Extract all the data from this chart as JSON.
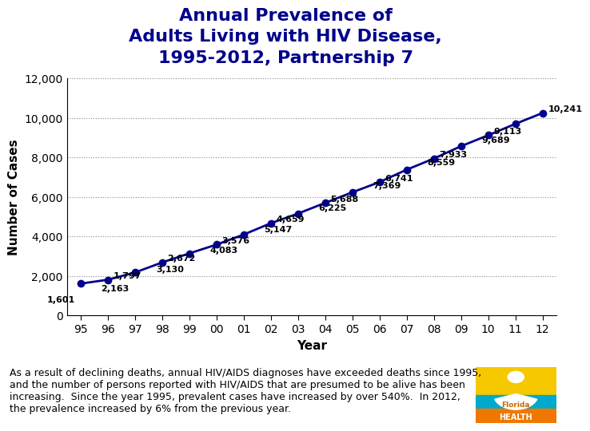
{
  "title": "Annual Prevalence of\nAdults Living with HIV Disease,\n1995-2012, Partnership 7",
  "xlabel": "Year",
  "ylabel": "Number of Cases",
  "years": [
    "95",
    "96",
    "97",
    "98",
    "99",
    "00",
    "01",
    "02",
    "03",
    "04",
    "05",
    "06",
    "07",
    "08",
    "09",
    "10",
    "11",
    "12"
  ],
  "values": [
    1601,
    1797,
    2163,
    2672,
    3130,
    3576,
    4083,
    4659,
    5147,
    5688,
    6225,
    6741,
    7369,
    7933,
    8559,
    9113,
    9689,
    10241
  ],
  "ylim": [
    0,
    12000
  ],
  "yticks": [
    0,
    2000,
    4000,
    6000,
    8000,
    10000,
    12000
  ],
  "line_color": "#00008B",
  "marker_color": "#00008B",
  "title_color": "#00008B",
  "label_color": "#000000",
  "axis_label_color": "#000000",
  "background_color": "#FFFFFF",
  "grid_color": "#888888",
  "footnote_line1": "As a result of declining deaths, annual HIV/AIDS diagnoses have exceeded deaths since 1995,",
  "footnote_line2": "and the number of persons reported with HIV/AIDS that are presumed to be alive has been",
  "footnote_line3": "increasing.  Since the year 1995, prevalent cases have increased by over 540%.  In 2012,",
  "footnote_line4": "the prevalence increased by 6% from the previous year.",
  "title_fontsize": 16,
  "axis_label_fontsize": 11,
  "tick_fontsize": 10,
  "data_label_fontsize": 8,
  "footnote_fontsize": 9
}
